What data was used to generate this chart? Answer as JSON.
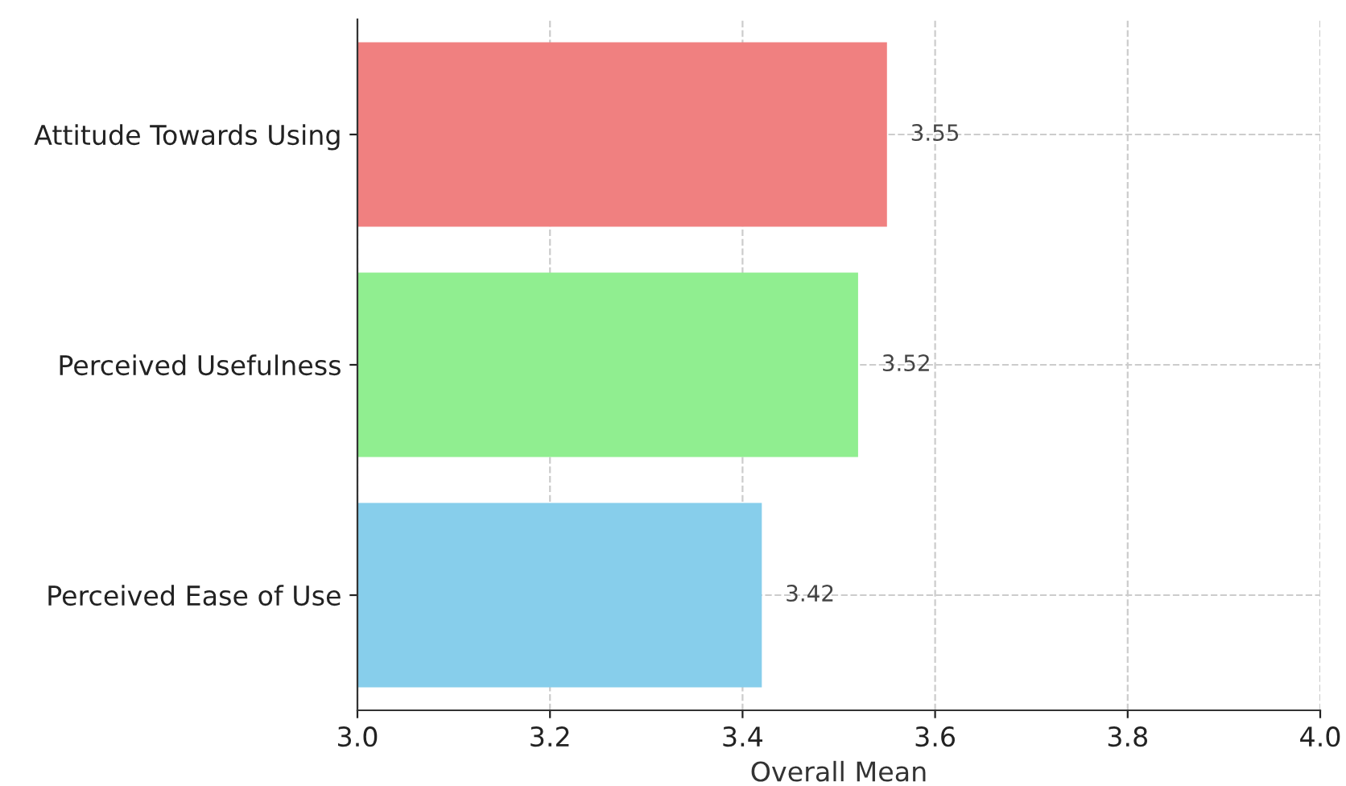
{
  "chart_data": {
    "type": "bar",
    "orientation": "horizontal",
    "categories": [
      "Attitude Towards Using",
      "Perceived Usefulness",
      "Perceived Ease of Use"
    ],
    "values": [
      3.55,
      3.52,
      3.42
    ],
    "colors": [
      "#f08080",
      "#90ee90",
      "#87ceeb"
    ],
    "xlabel": "Overall Mean",
    "xlim": [
      3.0,
      4.0
    ],
    "xticks": [
      {
        "value": 3,
        "label": "3.0"
      },
      3.2,
      3.4,
      3.6,
      3.8,
      {
        "value": 4,
        "label": "4.0"
      }
    ],
    "grid": true,
    "data_labels": true
  }
}
